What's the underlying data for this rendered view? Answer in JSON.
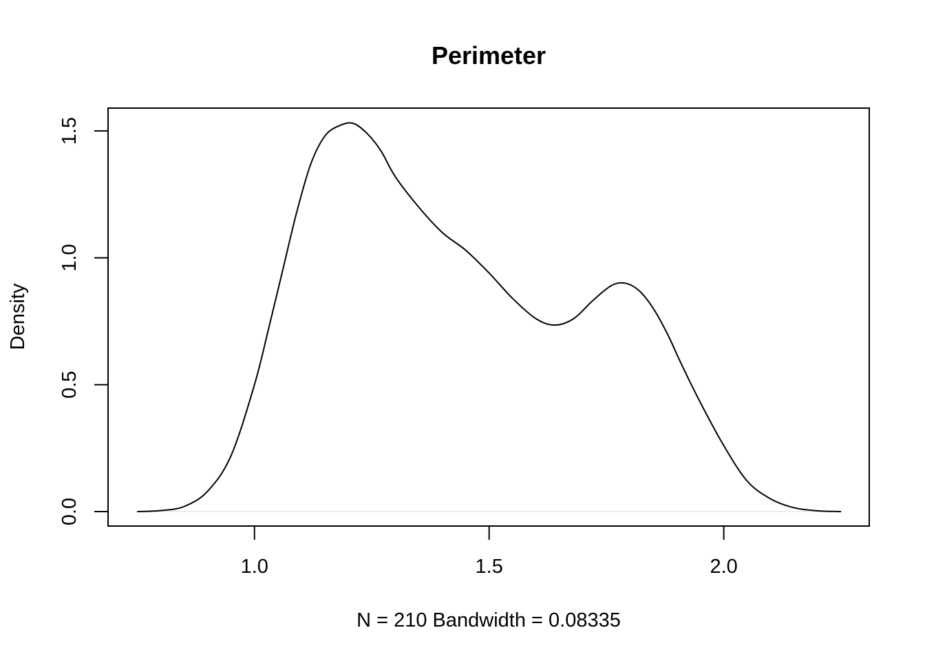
{
  "chart_data": {
    "type": "line",
    "title": "Perimeter",
    "xlabel": "N = 210   Bandwidth = 0.08335",
    "ylabel": "Density",
    "xlim": [
      0.688,
      2.31
    ],
    "ylim": [
      -0.057,
      1.59
    ],
    "x_ticks": [
      1.0,
      1.5,
      2.0
    ],
    "x_tick_labels": [
      "1.0",
      "1.5",
      "2.0"
    ],
    "y_ticks": [
      0.0,
      0.5,
      1.0,
      1.5
    ],
    "y_tick_labels": [
      "0.0",
      "0.5",
      "1.0",
      "1.5"
    ],
    "grid": false,
    "legend": "none",
    "colors": {
      "line": "#000000",
      "zero_line": "#e6e6e6",
      "background": "#ffffff"
    },
    "series": [
      {
        "x": [
          0.75,
          0.8,
          0.85,
          0.9,
          0.95,
          1.0,
          1.03,
          1.06,
          1.09,
          1.12,
          1.15,
          1.18,
          1.21,
          1.24,
          1.27,
          1.3,
          1.35,
          1.4,
          1.45,
          1.5,
          1.55,
          1.6,
          1.64,
          1.68,
          1.72,
          1.76,
          1.79,
          1.82,
          1.85,
          1.88,
          1.91,
          1.95,
          2.0,
          2.05,
          2.1,
          2.15,
          2.2,
          2.25
        ],
        "y": [
          0.0,
          0.004,
          0.02,
          0.08,
          0.22,
          0.5,
          0.72,
          0.95,
          1.18,
          1.37,
          1.48,
          1.52,
          1.53,
          1.49,
          1.42,
          1.32,
          1.2,
          1.1,
          1.03,
          0.94,
          0.84,
          0.76,
          0.735,
          0.76,
          0.83,
          0.89,
          0.9,
          0.87,
          0.8,
          0.7,
          0.58,
          0.43,
          0.26,
          0.12,
          0.05,
          0.015,
          0.003,
          0.0
        ]
      }
    ]
  }
}
